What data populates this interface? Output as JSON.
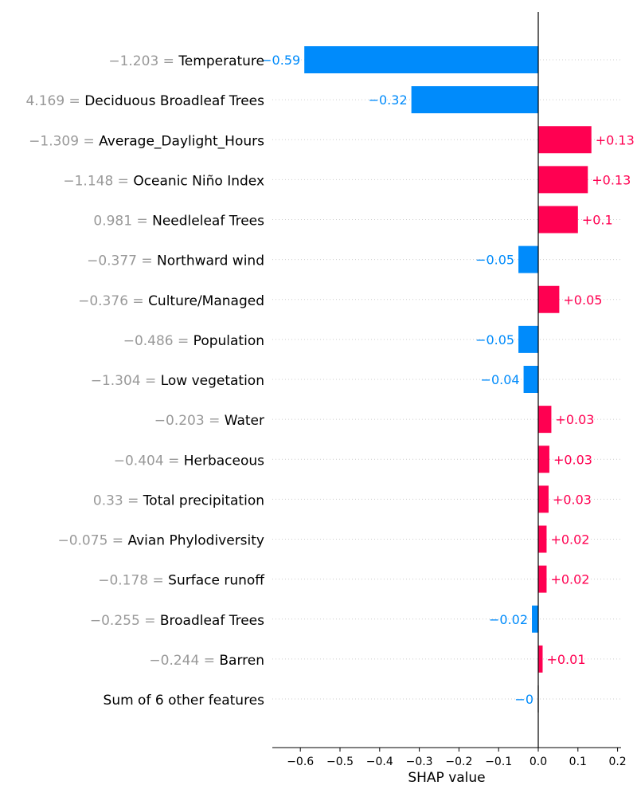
{
  "chart_data": {
    "type": "bar",
    "xlabel": "SHAP value",
    "xlim": [
      -0.67,
      0.21
    ],
    "xticks": [
      -0.6,
      -0.5,
      -0.4,
      -0.3,
      -0.2,
      -0.1,
      0.0,
      0.1,
      0.2
    ],
    "xtick_labels": [
      "−0.6",
      "−0.5",
      "−0.4",
      "−0.3",
      "−0.2",
      "−0.1",
      "0.0",
      "0.1",
      "0.2"
    ],
    "colors": {
      "positive": "#ff0051",
      "negative": "#008bfb",
      "zero": "#cccccc",
      "grid": "#cccccc",
      "feature_value": "#999999"
    },
    "features": [
      {
        "value_label": "−1.203 = ",
        "name": "Temperature",
        "shap": -0.59,
        "label": "−0.59"
      },
      {
        "value_label": "4.169 = ",
        "name": "Deciduous Broadleaf Trees",
        "shap": -0.32,
        "label": "−0.32"
      },
      {
        "value_label": "−1.309 = ",
        "name": "Average_Daylight_Hours",
        "shap": 0.134,
        "label": "+0.13"
      },
      {
        "value_label": "−1.148 = ",
        "name": "Oceanic Niño Index",
        "shap": 0.125,
        "label": "+0.13"
      },
      {
        "value_label": "0.981 = ",
        "name": "Needleleaf Trees",
        "shap": 0.1,
        "label": "+0.1"
      },
      {
        "value_label": "−0.377 = ",
        "name": "Northward wind",
        "shap": -0.05,
        "label": "−0.05"
      },
      {
        "value_label": "−0.376 = ",
        "name": "Culture/Managed",
        "shap": 0.053,
        "label": "+0.05"
      },
      {
        "value_label": "−0.486 = ",
        "name": "Population",
        "shap": -0.05,
        "label": "−0.05"
      },
      {
        "value_label": "−1.304 = ",
        "name": "Low vegetation",
        "shap": -0.037,
        "label": "−0.04"
      },
      {
        "value_label": "−0.203 = ",
        "name": "Water",
        "shap": 0.033,
        "label": "+0.03"
      },
      {
        "value_label": "−0.404 = ",
        "name": "Herbaceous",
        "shap": 0.028,
        "label": "+0.03"
      },
      {
        "value_label": "0.33 = ",
        "name": "Total precipitation",
        "shap": 0.026,
        "label": "+0.03"
      },
      {
        "value_label": "−0.075 = ",
        "name": "Avian Phylodiversity",
        "shap": 0.021,
        "label": "+0.02"
      },
      {
        "value_label": "−0.178 = ",
        "name": "Surface runoff",
        "shap": 0.021,
        "label": "+0.02"
      },
      {
        "value_label": "−0.255 = ",
        "name": "Broadleaf Trees",
        "shap": -0.016,
        "label": "−0.02"
      },
      {
        "value_label": "−0.244 = ",
        "name": "Barren",
        "shap": 0.011,
        "label": "+0.01"
      },
      {
        "value_label": "",
        "name": "Sum of 6 other features",
        "shap": -0.002,
        "label": "−0",
        "zero": true
      }
    ]
  }
}
